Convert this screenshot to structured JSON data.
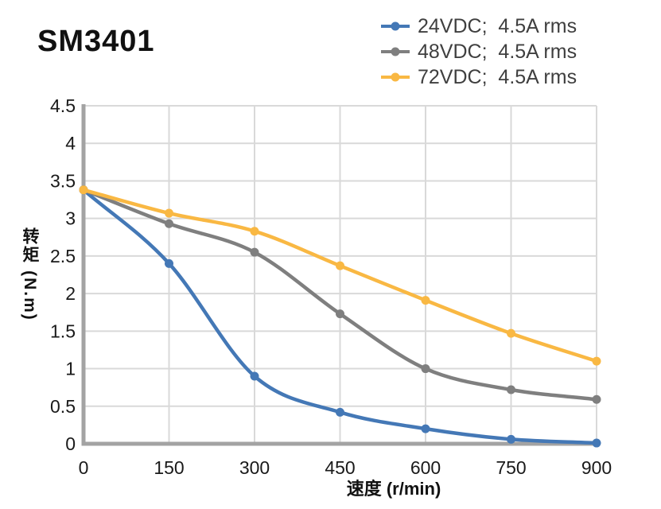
{
  "colors": {
    "axis": "#A3A3A3",
    "grid": "#D9D9D9",
    "tick_text": "#1A1A1A",
    "legend_text": "#3F3F3F",
    "title_text": "#111111"
  },
  "chart_data": {
    "type": "line",
    "title": "SM3401",
    "xlabel": "速度 (r/min)",
    "ylabel": "转矩 (N.m)",
    "x": [
      0,
      150,
      300,
      450,
      600,
      750,
      900
    ],
    "xlim": [
      0,
      900
    ],
    "ylim": [
      0,
      4.5
    ],
    "x_ticks": [
      0,
      150,
      300,
      450,
      600,
      750,
      900
    ],
    "y_ticks": [
      0,
      0.5,
      1,
      1.5,
      2,
      2.5,
      3,
      3.5,
      4,
      4.5
    ],
    "grid": true,
    "legend_position": "top-right",
    "marker": "circle",
    "series": [
      {
        "name": "24VDC;  4.5A rms",
        "color": "#4478B6",
        "values": [
          3.38,
          2.4,
          0.9,
          0.42,
          0.2,
          0.06,
          0.01
        ]
      },
      {
        "name": "48VDC;  4.5A rms",
        "color": "#7F7F7F",
        "values": [
          3.38,
          2.93,
          2.55,
          1.73,
          1.0,
          0.72,
          0.59
        ]
      },
      {
        "name": "72VDC;  4.5A rms",
        "color": "#F9B843",
        "values": [
          3.38,
          3.07,
          2.83,
          2.37,
          1.91,
          1.47,
          1.1
        ]
      }
    ]
  }
}
